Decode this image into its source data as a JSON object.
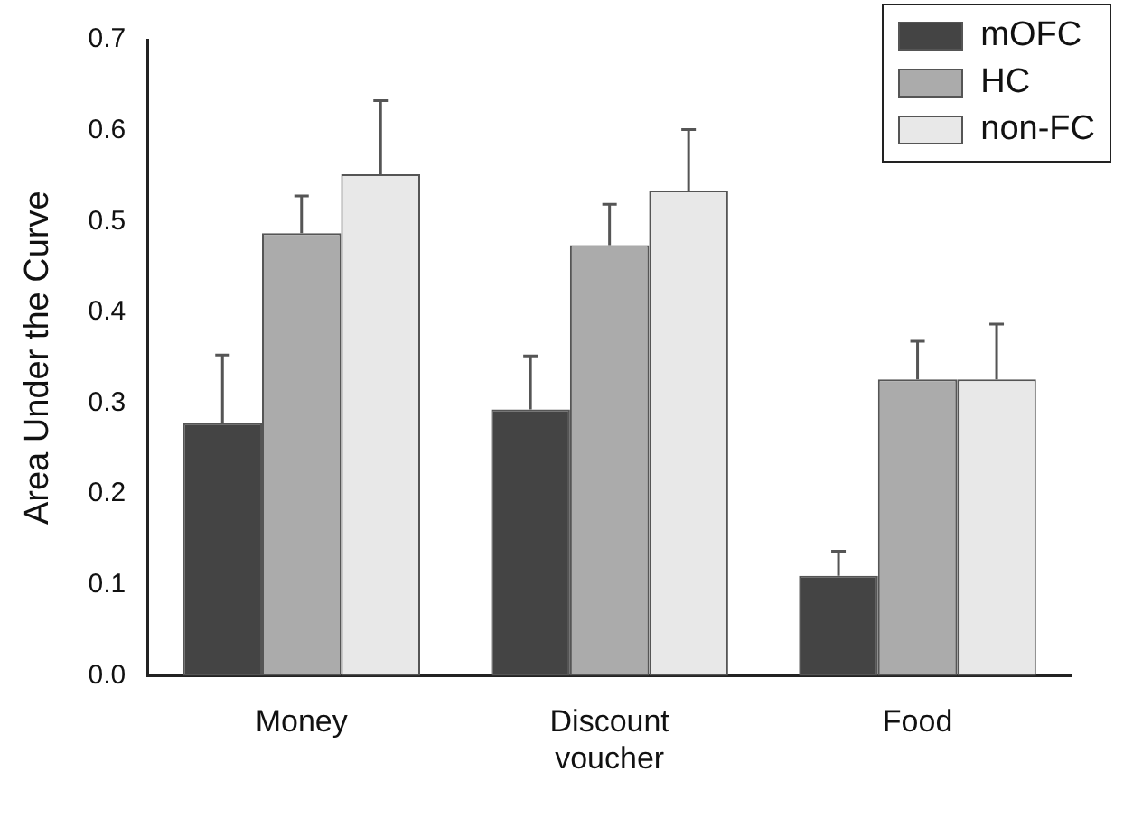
{
  "chart_data": {
    "type": "bar",
    "ylabel": "Area Under the Curve",
    "categories": [
      "Money",
      "Discount voucher",
      "Food"
    ],
    "series": [
      {
        "name": "mOFC",
        "color": "#444444",
        "values": [
          0.278,
          0.293,
          0.11
        ],
        "errors": [
          [
            0.278,
            0.353
          ],
          [
            0.293,
            0.352
          ],
          [
            0.11,
            0.137
          ]
        ]
      },
      {
        "name": "HC",
        "color": "#ababab",
        "values": [
          0.487,
          0.474,
          0.326
        ],
        "errors": [
          [
            0.487,
            0.528
          ],
          [
            0.474,
            0.519
          ],
          [
            0.326,
            0.368
          ]
        ]
      },
      {
        "name": "non-FC",
        "color": "#e8e8e8",
        "values": [
          0.552,
          0.534,
          0.326
        ],
        "errors": [
          [
            0.552,
            0.633
          ],
          [
            0.534,
            0.601
          ],
          [
            0.326,
            0.387
          ]
        ]
      }
    ],
    "ylim": [
      0,
      0.7
    ],
    "yticks": [
      {
        "value": 0,
        "label": "0.0"
      },
      0.1,
      0.2,
      0.3,
      0.4,
      0.5,
      0.6,
      0.7
    ],
    "grid": false,
    "legend": "top right"
  }
}
